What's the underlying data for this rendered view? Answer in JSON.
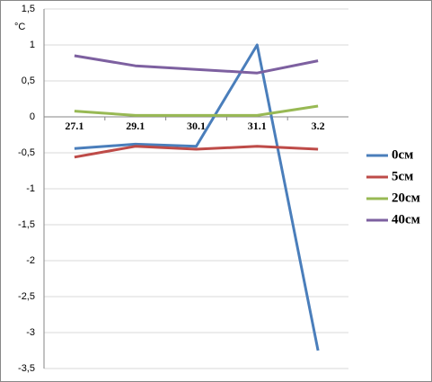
{
  "chart_data": {
    "type": "line",
    "y_label": "°C",
    "categories": [
      "27.1",
      "29.1",
      "30.1",
      "31.1",
      "3.2"
    ],
    "series": [
      {
        "name": "0см",
        "color": "#4a7ebb",
        "values": [
          -0.44,
          -0.38,
          -0.41,
          1.0,
          -3.25
        ]
      },
      {
        "name": "5см",
        "color": "#be4b48",
        "values": [
          -0.56,
          -0.41,
          -0.45,
          -0.41,
          -0.45
        ]
      },
      {
        "name": "20см",
        "color": "#98b954",
        "values": [
          0.08,
          0.02,
          0.02,
          0.02,
          0.15
        ]
      },
      {
        "name": "40см",
        "color": "#7d60a0",
        "values": [
          0.85,
          0.71,
          0.66,
          0.61,
          0.78
        ]
      }
    ],
    "ylim": [
      -3.5,
      1.5
    ],
    "yticks": [
      {
        "value": -3.5,
        "label": "-3,5"
      },
      -3,
      {
        "value": -2.5,
        "label": "-2,5"
      },
      -2,
      {
        "value": -1.5,
        "label": "-1,5"
      },
      -1,
      {
        "value": -0.5,
        "label": "-0,5"
      },
      0,
      {
        "value": 0.5,
        "label": "0,5"
      },
      1,
      {
        "value": 1.5,
        "label": "1,5"
      }
    ],
    "grid": true,
    "legend": "right"
  }
}
